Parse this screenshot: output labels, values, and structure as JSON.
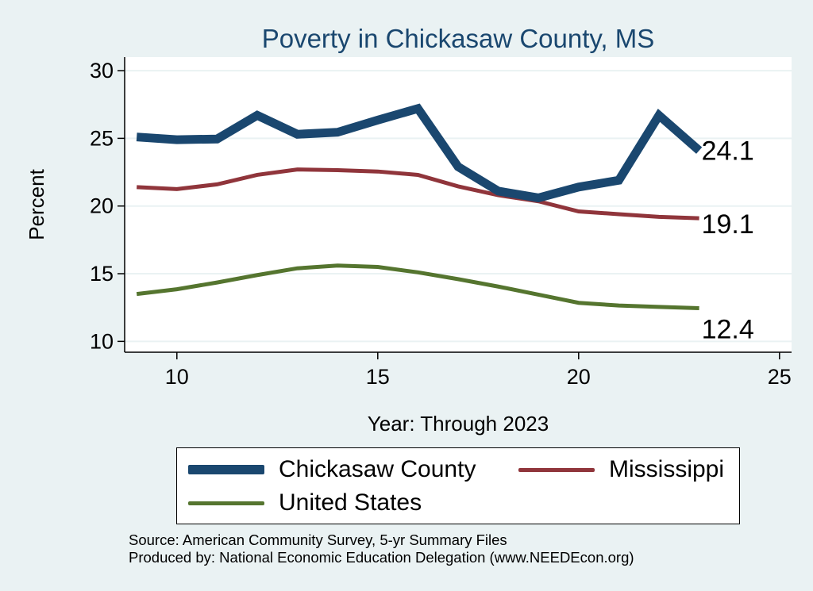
{
  "chart_data": {
    "type": "line",
    "title": "Poverty in Chickasaw County, MS",
    "xlabel": "Year: Through 2023",
    "ylabel": "Percent",
    "xlim": [
      8.7,
      25.3
    ],
    "ylim": [
      9.2,
      31.0
    ],
    "xticks": [
      10,
      15,
      20,
      25
    ],
    "yticks": [
      10,
      15,
      20,
      25,
      30
    ],
    "x": [
      9,
      10,
      11,
      12,
      13,
      14,
      15,
      16,
      17,
      18,
      19,
      20,
      21,
      22,
      23
    ],
    "series": [
      {
        "name": "Chickasaw County",
        "color": "#1a476f",
        "values": [
          25.1,
          24.9,
          24.95,
          26.7,
          25.3,
          25.45,
          26.35,
          27.2,
          22.9,
          21.1,
          20.6,
          21.4,
          21.9,
          26.7,
          24.1
        ],
        "end_label": "24.1"
      },
      {
        "name": "Mississippi",
        "color": "#90353b",
        "values": [
          21.4,
          21.25,
          21.6,
          22.3,
          22.7,
          22.65,
          22.55,
          22.3,
          21.45,
          20.8,
          20.35,
          19.6,
          19.4,
          19.2,
          19.1
        ],
        "end_label": "19.1"
      },
      {
        "name": "United States",
        "color": "#55752f",
        "values": [
          13.5,
          13.85,
          14.35,
          14.9,
          15.4,
          15.6,
          15.5,
          15.1,
          14.6,
          14.05,
          13.45,
          12.85,
          12.65,
          12.55,
          12.45
        ],
        "end_label": "12.4"
      }
    ],
    "legend_position": "bottom"
  },
  "source": {
    "line1": "Source: American Community Survey, 5-yr Summary Files",
    "line2": "Produced by: National Economic Education Delegation (www.NEEDEcon.org)"
  }
}
